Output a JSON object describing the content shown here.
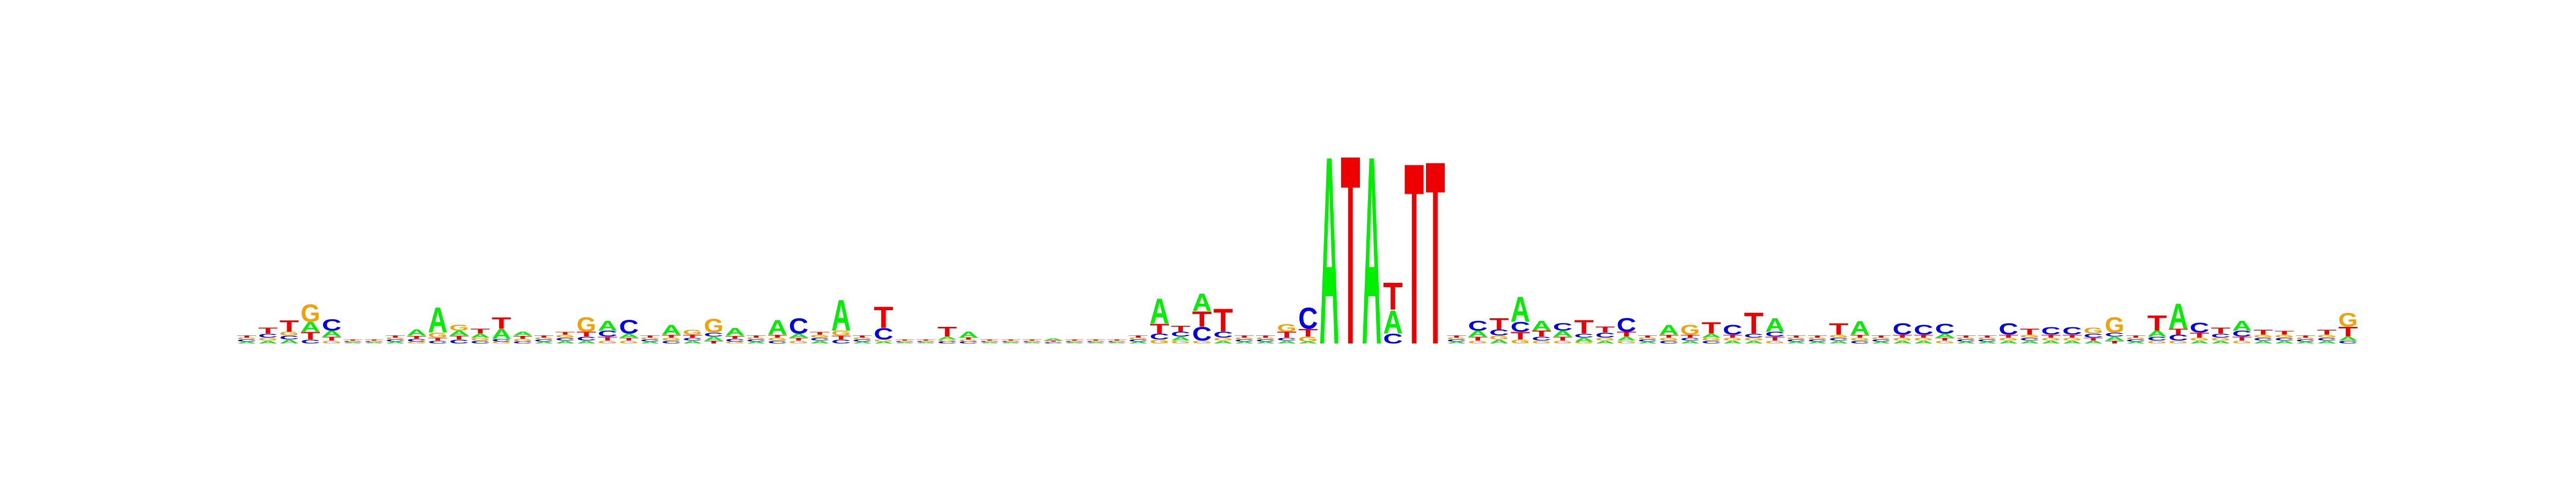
{
  "chart_data": {
    "type": "sequence-logo",
    "alphabet": [
      "A",
      "C",
      "G",
      "T"
    ],
    "colors": {
      "A": "#00ee00",
      "C": "#0000ee",
      "G": "#f5a000",
      "T": "#ee0000"
    },
    "ylim": [
      0,
      2
    ],
    "positions": [
      {
        "A": 0.02,
        "C": 0.02,
        "G": 0.02,
        "T": 0.02
      },
      {
        "A": 0.03,
        "C": 0.04,
        "G": 0.03,
        "T": 0.06
      },
      {
        "A": 0.04,
        "C": 0.04,
        "G": 0.04,
        "T": 0.12
      },
      {
        "A": 0.1,
        "C": 0.04,
        "G": 0.18,
        "T": 0.08
      },
      {
        "A": 0.06,
        "C": 0.12,
        "G": 0.03,
        "T": 0.04
      },
      {
        "A": 0.01,
        "C": 0.01,
        "G": 0.01,
        "T": 0.01
      },
      {
        "A": 0.01,
        "C": 0.01,
        "G": 0.01,
        "T": 0.01
      },
      {
        "A": 0.02,
        "C": 0.02,
        "G": 0.02,
        "T": 0.02
      },
      {
        "A": 0.06,
        "C": 0.03,
        "G": 0.02,
        "T": 0.03
      },
      {
        "A": 0.26,
        "C": 0.03,
        "G": 0.05,
        "T": 0.03
      },
      {
        "A": 0.05,
        "C": 0.04,
        "G": 0.06,
        "T": 0.04
      },
      {
        "A": 0.04,
        "C": 0.03,
        "G": 0.03,
        "T": 0.05
      },
      {
        "A": 0.1,
        "C": 0.03,
        "G": 0.02,
        "T": 0.12
      },
      {
        "A": 0.04,
        "C": 0.02,
        "G": 0.03,
        "T": 0.03
      },
      {
        "A": 0.02,
        "C": 0.02,
        "G": 0.02,
        "T": 0.02
      },
      {
        "A": 0.03,
        "C": 0.03,
        "G": 0.03,
        "T": 0.03
      },
      {
        "A": 0.03,
        "C": 0.04,
        "G": 0.15,
        "T": 0.05
      },
      {
        "A": 0.1,
        "C": 0.06,
        "G": 0.03,
        "T": 0.04
      },
      {
        "A": 0.04,
        "C": 0.14,
        "G": 0.03,
        "T": 0.03
      },
      {
        "A": 0.02,
        "C": 0.02,
        "G": 0.02,
        "T": 0.02
      },
      {
        "A": 0.1,
        "C": 0.03,
        "G": 0.03,
        "T": 0.03
      },
      {
        "A": 0.03,
        "C": 0.03,
        "G": 0.05,
        "T": 0.03
      },
      {
        "A": 0.04,
        "C": 0.04,
        "G": 0.14,
        "T": 0.03
      },
      {
        "A": 0.08,
        "C": 0.03,
        "G": 0.02,
        "T": 0.03
      },
      {
        "A": 0.02,
        "C": 0.02,
        "G": 0.02,
        "T": 0.02
      },
      {
        "A": 0.15,
        "C": 0.03,
        "G": 0.03,
        "T": 0.03
      },
      {
        "A": 0.04,
        "C": 0.16,
        "G": 0.03,
        "T": 0.03
      },
      {
        "A": 0.03,
        "C": 0.03,
        "G": 0.03,
        "T": 0.03
      },
      {
        "A": 0.32,
        "C": 0.04,
        "G": 0.05,
        "T": 0.04
      },
      {
        "A": 0.02,
        "C": 0.02,
        "G": 0.02,
        "T": 0.02
      },
      {
        "A": 0.02,
        "C": 0.12,
        "G": 0.02,
        "T": 0.22
      },
      {
        "A": 0.01,
        "C": 0.01,
        "G": 0.01,
        "T": 0.01
      },
      {
        "A": 0.01,
        "C": 0.01,
        "G": 0.01,
        "T": 0.01
      },
      {
        "A": 0.03,
        "C": 0.02,
        "G": 0.02,
        "T": 0.1
      },
      {
        "A": 0.06,
        "C": 0.02,
        "G": 0.02,
        "T": 0.02
      },
      {
        "A": 0.01,
        "C": 0.01,
        "G": 0.01,
        "T": 0.01
      },
      {
        "A": 0.01,
        "C": 0.01,
        "G": 0.01,
        "T": 0.01
      },
      {
        "A": 0.01,
        "C": 0.01,
        "G": 0.01,
        "T": 0.01
      },
      {
        "A": 0.02,
        "C": 0.01,
        "G": 0.01,
        "T": 0.01
      },
      {
        "A": 0.01,
        "C": 0.01,
        "G": 0.01,
        "T": 0.01
      },
      {
        "A": 0.01,
        "C": 0.01,
        "G": 0.01,
        "T": 0.01
      },
      {
        "A": 0.01,
        "C": 0.01,
        "G": 0.01,
        "T": 0.01
      },
      {
        "A": 0.02,
        "C": 0.02,
        "G": 0.02,
        "T": 0.02
      },
      {
        "A": 0.26,
        "C": 0.06,
        "G": 0.04,
        "T": 0.1
      },
      {
        "A": 0.04,
        "C": 0.05,
        "G": 0.03,
        "T": 0.06
      },
      {
        "A": 0.18,
        "C": 0.14,
        "G": 0.03,
        "T": 0.16
      },
      {
        "A": 0.03,
        "C": 0.06,
        "G": 0.03,
        "T": 0.24
      },
      {
        "A": 0.02,
        "C": 0.02,
        "G": 0.02,
        "T": 0.02
      },
      {
        "A": 0.02,
        "C": 0.02,
        "G": 0.02,
        "T": 0.02
      },
      {
        "A": 0.03,
        "C": 0.03,
        "G": 0.08,
        "T": 0.06
      },
      {
        "A": 0.02,
        "C": 0.22,
        "G": 0.05,
        "T": 0.08
      },
      {
        "A": 1.95,
        "C": 0.0,
        "G": 0.0,
        "T": 0.0
      },
      {
        "A": 0.0,
        "C": 0.0,
        "G": 0.0,
        "T": 1.96
      },
      {
        "A": 1.95,
        "C": 0.0,
        "G": 0.0,
        "T": 0.0
      },
      {
        "A": 0.24,
        "C": 0.1,
        "G": 0.0,
        "T": 0.28
      },
      {
        "A": 0.0,
        "C": 0.0,
        "G": 0.0,
        "T": 1.88
      },
      {
        "A": 0.0,
        "C": 0.0,
        "G": 0.0,
        "T": 1.9
      },
      {
        "A": 0.02,
        "C": 0.02,
        "G": 0.02,
        "T": 0.02
      },
      {
        "A": 0.06,
        "C": 0.1,
        "G": 0.03,
        "T": 0.04
      },
      {
        "A": 0.04,
        "C": 0.06,
        "G": 0.04,
        "T": 0.12
      },
      {
        "A": 0.26,
        "C": 0.1,
        "G": 0.04,
        "T": 0.08
      },
      {
        "A": 0.1,
        "C": 0.04,
        "G": 0.03,
        "T": 0.06
      },
      {
        "A": 0.06,
        "C": 0.08,
        "G": 0.03,
        "T": 0.04
      },
      {
        "A": 0.04,
        "C": 0.04,
        "G": 0.02,
        "T": 0.14
      },
      {
        "A": 0.03,
        "C": 0.05,
        "G": 0.03,
        "T": 0.06
      },
      {
        "A": 0.04,
        "C": 0.14,
        "G": 0.03,
        "T": 0.05
      },
      {
        "A": 0.02,
        "C": 0.02,
        "G": 0.02,
        "T": 0.02
      },
      {
        "A": 0.1,
        "C": 0.03,
        "G": 0.03,
        "T": 0.03
      },
      {
        "A": 0.03,
        "C": 0.03,
        "G": 0.1,
        "T": 0.03
      },
      {
        "A": 0.04,
        "C": 0.03,
        "G": 0.03,
        "T": 0.12
      },
      {
        "A": 0.03,
        "C": 0.1,
        "G": 0.03,
        "T": 0.03
      },
      {
        "A": 0.03,
        "C": 0.04,
        "G": 0.03,
        "T": 0.22
      },
      {
        "A": 0.14,
        "C": 0.05,
        "G": 0.03,
        "T": 0.04
      },
      {
        "A": 0.02,
        "C": 0.02,
        "G": 0.02,
        "T": 0.02
      },
      {
        "A": 0.02,
        "C": 0.02,
        "G": 0.02,
        "T": 0.02
      },
      {
        "A": 0.03,
        "C": 0.03,
        "G": 0.03,
        "T": 0.12
      },
      {
        "A": 0.14,
        "C": 0.03,
        "G": 0.03,
        "T": 0.03
      },
      {
        "A": 0.02,
        "C": 0.02,
        "G": 0.02,
        "T": 0.02
      },
      {
        "A": 0.03,
        "C": 0.12,
        "G": 0.03,
        "T": 0.03
      },
      {
        "A": 0.03,
        "C": 0.1,
        "G": 0.03,
        "T": 0.03
      },
      {
        "A": 0.04,
        "C": 0.1,
        "G": 0.03,
        "T": 0.03
      },
      {
        "A": 0.02,
        "C": 0.02,
        "G": 0.02,
        "T": 0.02
      },
      {
        "A": 0.02,
        "C": 0.02,
        "G": 0.02,
        "T": 0.02
      },
      {
        "A": 0.03,
        "C": 0.12,
        "G": 0.03,
        "T": 0.03
      },
      {
        "A": 0.03,
        "C": 0.03,
        "G": 0.03,
        "T": 0.06
      },
      {
        "A": 0.03,
        "C": 0.08,
        "G": 0.03,
        "T": 0.03
      },
      {
        "A": 0.03,
        "C": 0.08,
        "G": 0.03,
        "T": 0.03
      },
      {
        "A": 0.03,
        "C": 0.04,
        "G": 0.06,
        "T": 0.03
      },
      {
        "A": 0.04,
        "C": 0.04,
        "G": 0.16,
        "T": 0.03
      },
      {
        "A": 0.02,
        "C": 0.02,
        "G": 0.02,
        "T": 0.02
      },
      {
        "A": 0.06,
        "C": 0.04,
        "G": 0.03,
        "T": 0.16
      },
      {
        "A": 0.26,
        "C": 0.06,
        "G": 0.03,
        "T": 0.06
      },
      {
        "A": 0.03,
        "C": 0.1,
        "G": 0.03,
        "T": 0.05
      },
      {
        "A": 0.03,
        "C": 0.04,
        "G": 0.03,
        "T": 0.06
      },
      {
        "A": 0.1,
        "C": 0.06,
        "G": 0.03,
        "T": 0.04
      },
      {
        "A": 0.03,
        "C": 0.03,
        "G": 0.03,
        "T": 0.05
      },
      {
        "A": 0.03,
        "C": 0.03,
        "G": 0.03,
        "T": 0.04
      },
      {
        "A": 0.02,
        "C": 0.02,
        "G": 0.02,
        "T": 0.02
      },
      {
        "A": 0.03,
        "C": 0.03,
        "G": 0.03,
        "T": 0.05
      },
      {
        "A": 0.04,
        "C": 0.03,
        "G": 0.14,
        "T": 0.1
      }
    ]
  }
}
